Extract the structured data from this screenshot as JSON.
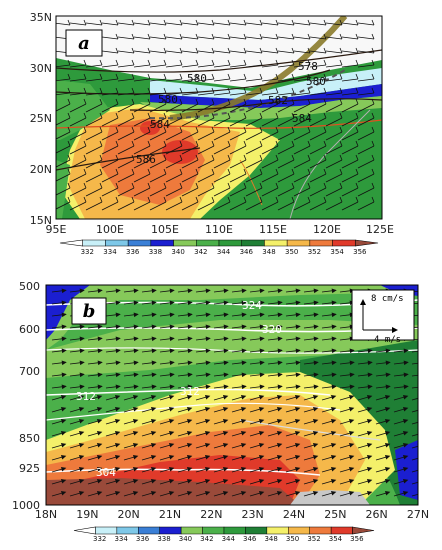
{
  "panel_a": {
    "tag": "a",
    "lat_labels": [
      "35N",
      "30N",
      "25N",
      "20N",
      "15N"
    ],
    "lon_labels": [
      "95E",
      "100E",
      "105E",
      "110E",
      "115E",
      "120E",
      "125E"
    ],
    "contour_labels": [
      "580",
      "578",
      "580",
      "580",
      "582",
      "584",
      "584",
      "586"
    ],
    "colorbar_labels": [
      "332",
      "334",
      "336",
      "338",
      "340",
      "342",
      "344",
      "346",
      "348",
      "350",
      "352",
      "354",
      "356"
    ]
  },
  "panel_b": {
    "tag": "b",
    "pressure_labels": [
      "500",
      "600",
      "700",
      "850",
      "925",
      "1000"
    ],
    "lat_labels": [
      "18N",
      "19N",
      "20N",
      "21N",
      "22N",
      "23N",
      "24N",
      "25N",
      "26N",
      "27N"
    ],
    "contour_labels": [
      "324",
      "320",
      "312",
      "312",
      "304"
    ],
    "ref_vector_vertical": "8 cm/s",
    "ref_vector_horizontal": "4 m/s",
    "colorbar_labels": [
      "332",
      "334",
      "336",
      "338",
      "340",
      "342",
      "344",
      "346",
      "348",
      "350",
      "352",
      "354",
      "356"
    ]
  },
  "colors": {
    "c332": "#c8f0f8",
    "c334": "#7ec8e8",
    "c336": "#3a7fd6",
    "c338": "#1b1fd0",
    "c340": "#86c95a",
    "c342": "#4bb04a",
    "c344": "#2e9a3c",
    "c346": "#1f7f35",
    "c348": "#f4f06a",
    "c350": "#f5b84a",
    "c352": "#ee7a3c",
    "c354": "#e03a2a",
    "c356": "#9a4a3a"
  }
}
